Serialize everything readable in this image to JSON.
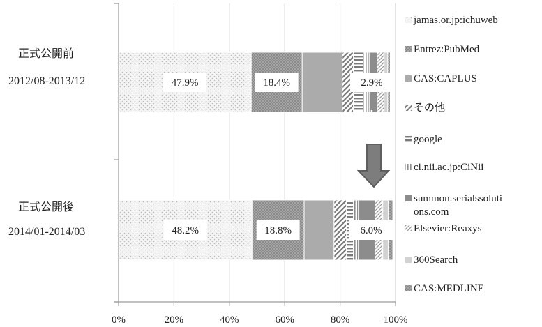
{
  "chart_data": {
    "type": "bar",
    "orientation": "horizontal",
    "stacked": "percent",
    "xlim": [
      0,
      100
    ],
    "x_ticks": [
      "0%",
      "20%",
      "40%",
      "60%",
      "80%",
      "100%"
    ],
    "grid": "vertical",
    "legend_position": "right",
    "categories": [
      {
        "line1": "正式公開前",
        "line2": "2012/08-2013/12"
      },
      {
        "line1": "正式公開後",
        "line2": "2014/01-2014/03"
      }
    ],
    "series": [
      {
        "name": "jamas.or.jp:ichuweb",
        "values": [
          47.9,
          48.2
        ],
        "pattern": "light-dots"
      },
      {
        "name": "Entrez:PubMed",
        "values": [
          18.4,
          18.8
        ],
        "pattern": "dark-dots"
      },
      {
        "name": "CAS:CAPLUS",
        "values": [
          14.5,
          10.8
        ],
        "pattern": "solid-gray"
      },
      {
        "name": "その他",
        "values": [
          4.0,
          4.5
        ],
        "pattern": "diagonal"
      },
      {
        "name": "google",
        "values": [
          3.5,
          2.5
        ],
        "pattern": "horizontal"
      },
      {
        "name": "ci.nii.ac.jp:CiNii",
        "values": [
          2.2,
          1.8
        ],
        "pattern": "vertical"
      },
      {
        "name": "summon.serialssolutions.com",
        "values": [
          2.9,
          6.0
        ],
        "pattern": "solid-dark"
      },
      {
        "name": "Elsevier:Reaxys",
        "values": [
          2.5,
          2.8
        ],
        "pattern": "diagonal-fine"
      },
      {
        "name": "360Search",
        "values": [
          1.3,
          2.0
        ],
        "pattern": "solid-light"
      },
      {
        "name": "CAS:MEDLINE",
        "values": [
          0.9,
          1.6
        ],
        "pattern": "dark-dots"
      }
    ],
    "data_labels": [
      {
        "row": 0,
        "series": 0,
        "text": "47.9%"
      },
      {
        "row": 0,
        "series": 1,
        "text": "18.4%"
      },
      {
        "row": 0,
        "series": 6,
        "text": "2.9%"
      },
      {
        "row": 1,
        "series": 0,
        "text": "48.2%"
      },
      {
        "row": 1,
        "series": 1,
        "text": "18.8%"
      },
      {
        "row": 1,
        "series": 6,
        "text": "6.0%"
      }
    ],
    "legend": [
      {
        "series": 0,
        "lines": [
          "jamas.or.jp:ichuweb"
        ]
      },
      {
        "series": 1,
        "lines": [
          "Entrez:PubMed"
        ]
      },
      {
        "series": 2,
        "lines": [
          "CAS:CAPLUS"
        ]
      },
      {
        "series": 3,
        "lines": [
          "その他"
        ]
      },
      {
        "series": 4,
        "lines": [
          "google"
        ]
      },
      {
        "series": 5,
        "lines": [
          "ci.nii.ac.jp:CiNii"
        ]
      },
      {
        "series": 6,
        "lines": [
          "summon.serialssoluti",
          "ons.com"
        ]
      },
      {
        "series": 7,
        "lines": [
          "Elsevier:Reaxys"
        ]
      },
      {
        "series": 8,
        "lines": [
          "360Search"
        ]
      },
      {
        "series": 9,
        "lines": [
          "CAS:MEDLINE"
        ]
      }
    ],
    "annotation": {
      "type": "arrow",
      "direction": "down",
      "between_rows": [
        0,
        1
      ],
      "series": 6
    },
    "colors": {
      "light-dots-bg": "#f4f4f4",
      "light-dots-fg": "#bdbdbd",
      "dark-dots-bg": "#8a8a8a",
      "dark-dots-fg": "#cfcfcf",
      "solid-gray": "#ababab",
      "solid-dark": "#8c8c8c",
      "solid-light": "#d2d2d2",
      "stripe": "#7a7a7a",
      "axis": "#9a9a9a",
      "arrow": "#7d7d7d"
    }
  }
}
